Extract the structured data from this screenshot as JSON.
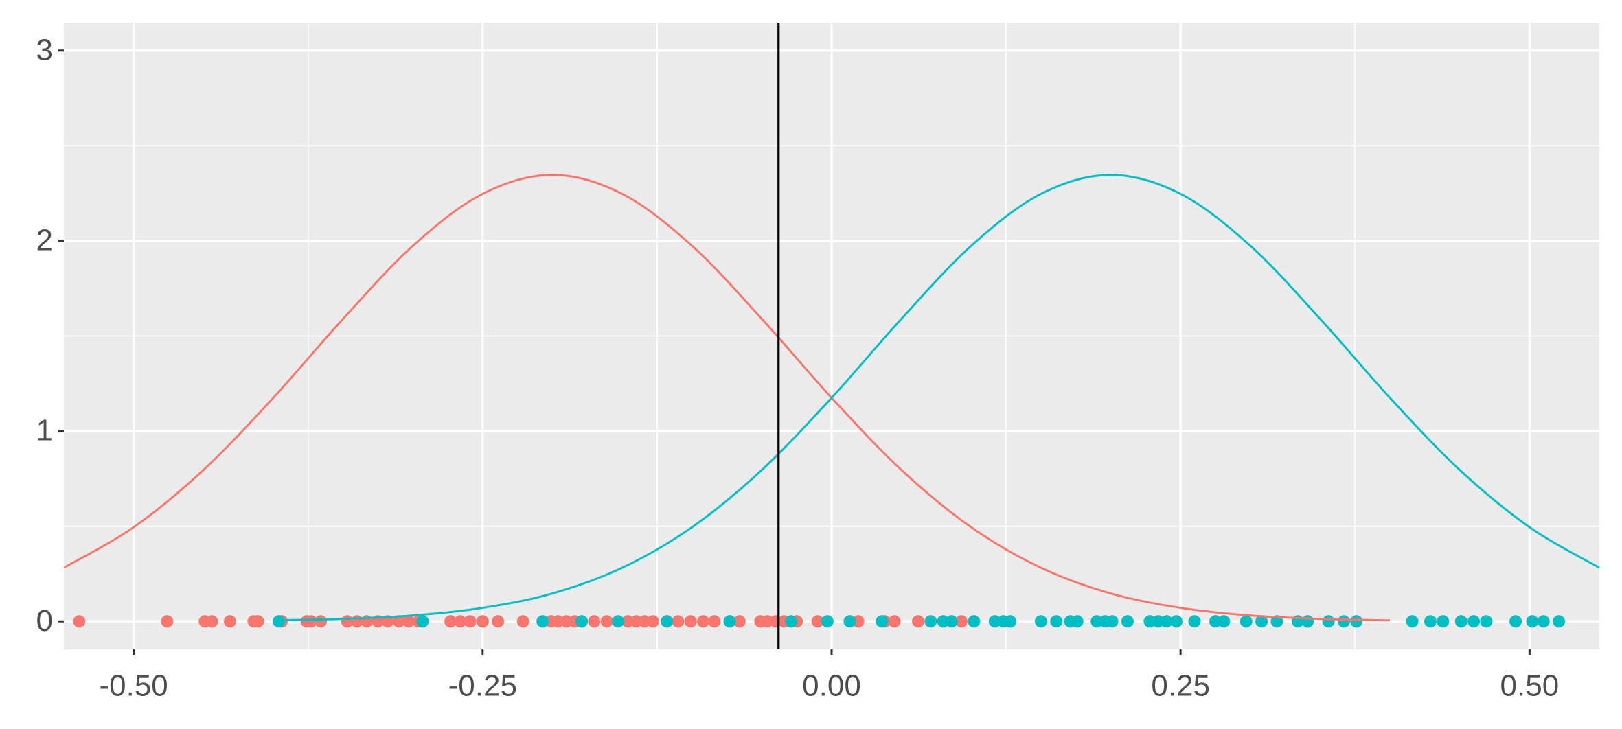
{
  "chart_data": {
    "type": "line",
    "xlim": [
      -0.55,
      0.55
    ],
    "ylim": [
      -0.147,
      3.147
    ],
    "xticks": [
      {
        "value": -0.5,
        "label": "-0.50"
      },
      {
        "value": -0.25,
        "label": "-0.25"
      },
      {
        "value": 0,
        "label": "0.00"
      },
      {
        "value": 0.25,
        "label": "0.25"
      },
      {
        "value": 0.5,
        "label": "0.50"
      }
    ],
    "yticks": [
      0,
      1,
      2,
      3
    ],
    "minor_xticks": [
      -0.375,
      -0.125,
      0.125,
      0.375
    ],
    "minor_yticks": [
      0.5,
      1.5,
      2.5
    ],
    "grid": true,
    "vline": -0.038,
    "series": [
      {
        "type": "scatter",
        "color": "#f8766d",
        "x": [
          -0.539,
          -0.476,
          -0.449,
          -0.444,
          -0.431,
          -0.414,
          -0.411,
          -0.394,
          -0.376,
          -0.373,
          -0.366,
          -0.347,
          -0.34,
          -0.333,
          -0.325,
          -0.318,
          -0.31,
          -0.303,
          -0.296,
          -0.273,
          -0.266,
          -0.259,
          -0.25,
          -0.239,
          -0.221,
          -0.201,
          -0.196,
          -0.19,
          -0.184,
          -0.17,
          -0.161,
          -0.146,
          -0.14,
          -0.134,
          -0.128,
          -0.118,
          -0.11,
          -0.101,
          -0.092,
          -0.084,
          -0.073,
          -0.066,
          -0.051,
          -0.046,
          -0.04,
          -0.034,
          -0.025,
          -0.01,
          0.019,
          0.038,
          0.045,
          0.062,
          0.093
        ],
        "values": [
          0,
          0,
          0,
          0,
          0,
          0,
          0,
          0,
          0,
          0,
          0,
          0,
          0,
          0,
          0,
          0,
          0,
          0,
          0,
          0,
          0,
          0,
          0,
          0,
          0,
          0,
          0,
          0,
          0,
          0,
          0,
          0,
          0,
          0,
          0,
          0,
          0,
          0,
          0,
          0,
          0,
          0,
          0,
          0,
          0,
          0,
          0,
          0,
          0,
          0,
          0,
          0,
          0
        ]
      },
      {
        "type": "scatter",
        "color": "#00bfc4",
        "x": [
          -0.396,
          -0.293,
          -0.207,
          -0.179,
          -0.153,
          -0.118,
          -0.073,
          -0.029,
          -0.003,
          0.013,
          0.036,
          0.071,
          0.08,
          0.086,
          0.102,
          0.117,
          0.123,
          0.128,
          0.15,
          0.161,
          0.171,
          0.176,
          0.19,
          0.196,
          0.201,
          0.212,
          0.228,
          0.234,
          0.24,
          0.247,
          0.26,
          0.275,
          0.281,
          0.297,
          0.308,
          0.319,
          0.334,
          0.341,
          0.356,
          0.367,
          0.376,
          0.416,
          0.429,
          0.438,
          0.451,
          0.46,
          0.469,
          0.49,
          0.502,
          0.51,
          0.521
        ],
        "values": [
          0,
          0,
          0,
          0,
          0,
          0,
          0,
          0,
          0,
          0,
          0,
          0,
          0,
          0,
          0,
          0,
          0,
          0,
          0,
          0,
          0,
          0,
          0,
          0,
          0,
          0,
          0,
          0,
          0,
          0,
          0,
          0,
          0,
          0,
          0,
          0,
          0,
          0,
          0,
          0,
          0,
          0,
          0,
          0,
          0,
          0,
          0,
          0,
          0,
          0,
          0
        ]
      },
      {
        "type": "line",
        "color": "#f8766d",
        "x": [
          -0.55,
          -0.5,
          -0.45,
          -0.4,
          -0.35,
          -0.3,
          -0.25,
          -0.2,
          -0.15,
          -0.1,
          -0.05,
          0,
          0.05,
          0.1,
          0.15,
          0.2,
          0.25,
          0.3,
          0.35,
          0.4
        ],
        "values": [
          0.282,
          0.495,
          0.796,
          1.175,
          1.59,
          1.974,
          2.247,
          2.347,
          2.247,
          1.974,
          1.59,
          1.175,
          0.796,
          0.495,
          0.282,
          0.147,
          0.071,
          0.031,
          0.013,
          0.005
        ]
      },
      {
        "type": "line",
        "color": "#00bfc4",
        "x": [
          -0.4,
          -0.35,
          -0.3,
          -0.25,
          -0.2,
          -0.15,
          -0.1,
          -0.05,
          0,
          0.05,
          0.1,
          0.15,
          0.2,
          0.25,
          0.3,
          0.35,
          0.4,
          0.45,
          0.5,
          0.55
        ],
        "values": [
          0.005,
          0.013,
          0.031,
          0.071,
          0.147,
          0.282,
          0.495,
          0.796,
          1.175,
          1.59,
          1.974,
          2.247,
          2.347,
          2.247,
          1.974,
          1.59,
          1.175,
          0.796,
          0.495,
          0.282
        ]
      }
    ]
  }
}
